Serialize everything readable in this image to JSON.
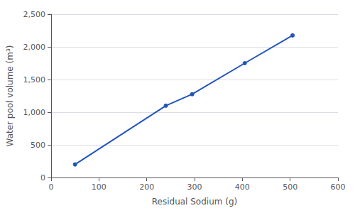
{
  "chart_data": {
    "type": "line",
    "x": [
      50,
      240,
      295,
      405,
      505
    ],
    "values": [
      200,
      1100,
      1275,
      1750,
      2175
    ],
    "color": "#2255BB",
    "marker": "o",
    "xlabel": "Residual Sodium (g)",
    "ylabel": "Water pool volume (m³)",
    "xlim": [
      0,
      600
    ],
    "ylim": [
      0,
      2500
    ],
    "xticks": [
      0,
      100,
      200,
      300,
      400,
      500,
      600
    ],
    "yticks": [
      0,
      500,
      {
        "value": 1000,
        "label": "1,000"
      },
      {
        "value": 1500,
        "label": "1,500"
      },
      {
        "value": 2000,
        "label": "2,000"
      },
      {
        "value": 2500,
        "label": "2,500"
      }
    ],
    "grid": "y"
  }
}
